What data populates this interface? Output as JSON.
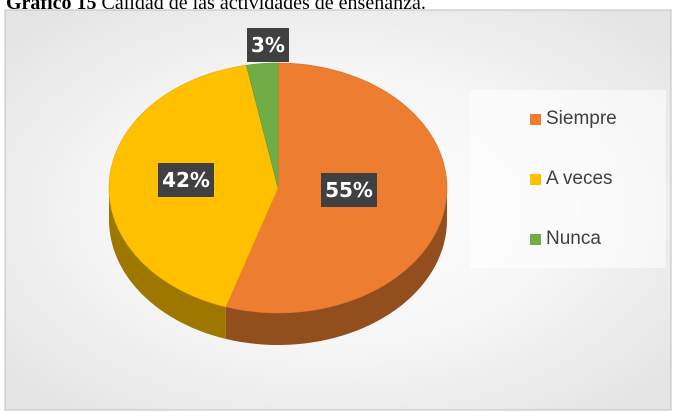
{
  "caption": {
    "bold": "Gráfico 15",
    "rest": " Calidad de las actividades de enseñanza."
  },
  "chart_data": {
    "type": "pie",
    "title": "",
    "categories": [
      "Siempre",
      "A veces",
      "Nunca"
    ],
    "values": [
      55,
      42,
      3
    ],
    "labels": [
      "55%",
      "42%",
      "3%"
    ],
    "colors": [
      "#ED7D31",
      "#FFC000",
      "#70AD47"
    ],
    "style": "3d",
    "legend": {
      "position": "right",
      "items": [
        "Siempre",
        "A veces",
        "Nunca"
      ]
    }
  }
}
